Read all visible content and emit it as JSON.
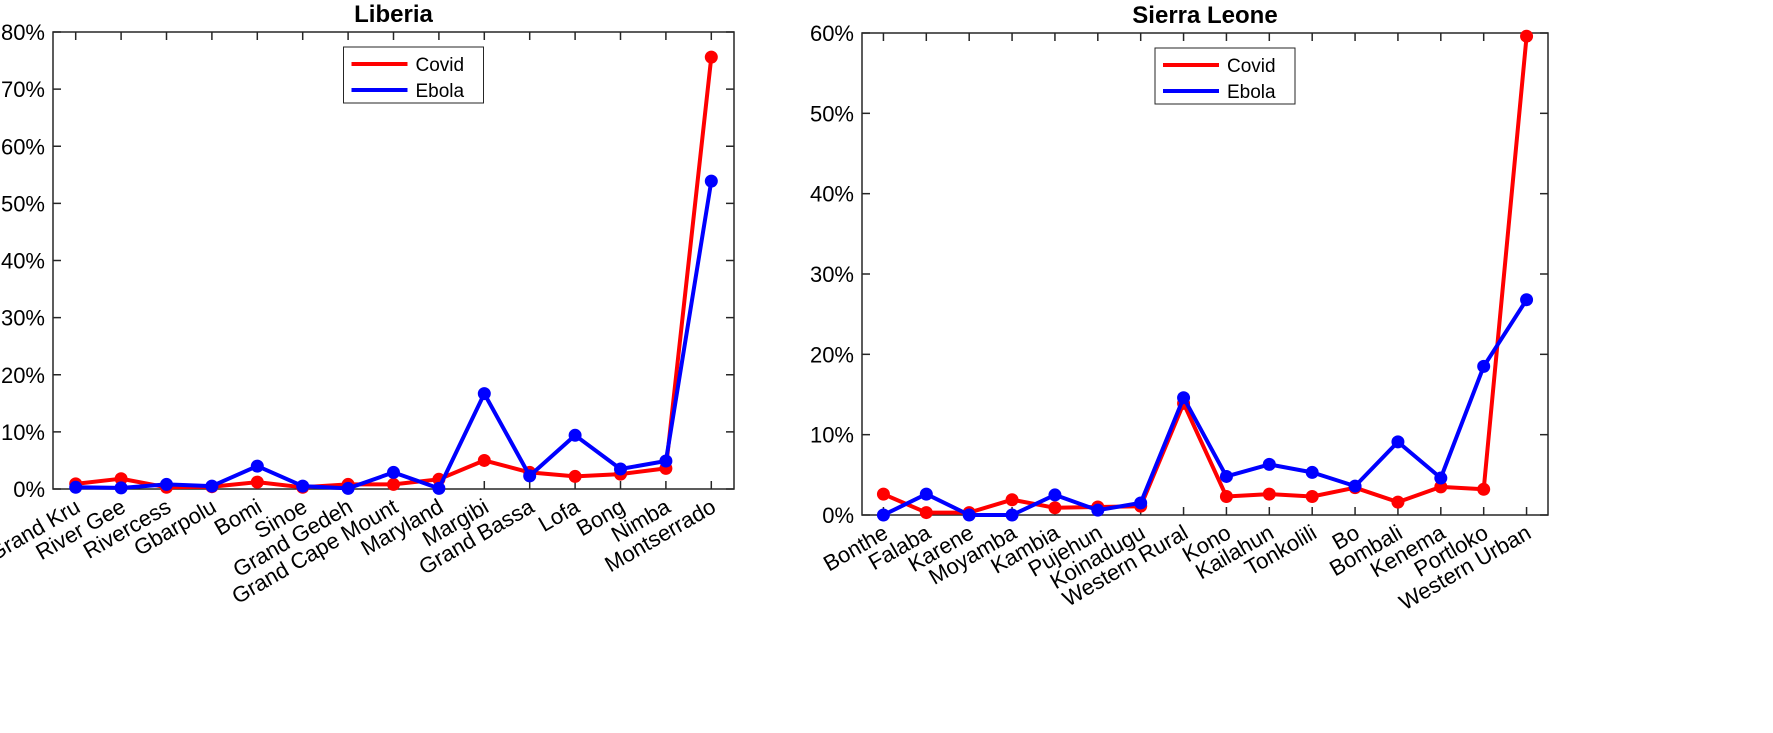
{
  "chart_data": [
    {
      "type": "line",
      "title": "Liberia",
      "xlabel": "",
      "ylabel": "",
      "categories": [
        "Grand Kru",
        "River Gee",
        "Rivercess",
        "Gbarpolu",
        "Bomi",
        "Sinoe",
        "Grand Gedeh",
        "Grand Cape Mount",
        "Maryland",
        "Margibi",
        "Grand Bassa",
        "Lofa",
        "Bong",
        "Nimba",
        "Montserrado"
      ],
      "y_tick_labels": [
        "0%",
        "10%",
        "20%",
        "30%",
        "40%",
        "50%",
        "60%",
        "70%",
        "80%"
      ],
      "ylim": [
        0,
        80
      ],
      "grid": false,
      "legend_position": "top-center",
      "series": [
        {
          "name": "Covid",
          "color": "#ff0000",
          "values": [
            0.9,
            1.8,
            0.3,
            0.4,
            1.2,
            0.3,
            0.8,
            0.8,
            1.7,
            5.0,
            2.9,
            2.2,
            2.6,
            3.6,
            75.6
          ]
        },
        {
          "name": "Ebola",
          "color": "#0000ff",
          "values": [
            0.3,
            0.2,
            0.8,
            0.5,
            4.0,
            0.5,
            0.1,
            2.9,
            0.1,
            16.7,
            2.3,
            9.4,
            3.5,
            4.9,
            53.9
          ]
        }
      ]
    },
    {
      "type": "line",
      "title": "Sierra Leone",
      "xlabel": "",
      "ylabel": "",
      "categories": [
        "Bonthe",
        "Falaba",
        "Karene",
        "Moyamba",
        "Kambia",
        "Pujehun",
        "Koinadugu",
        "Western Rural",
        "Kono",
        "Kailahun",
        "Tonkolili",
        "Bo",
        "Bombali",
        "Kenema",
        "Portloko",
        "Western Urban"
      ],
      "y_tick_labels": [
        "0%",
        "10%",
        "20%",
        "30%",
        "40%",
        "50%",
        "60%"
      ],
      "ylim": [
        0,
        60
      ],
      "grid": false,
      "legend_position": "top-center",
      "series": [
        {
          "name": "Covid",
          "color": "#ff0000",
          "values": [
            2.6,
            0.3,
            0.3,
            1.9,
            0.9,
            1.0,
            1.1,
            13.9,
            2.3,
            2.6,
            2.3,
            3.4,
            1.6,
            3.5,
            3.2,
            59.6
          ]
        },
        {
          "name": "Ebola",
          "color": "#0000ff",
          "values": [
            0.0,
            2.6,
            0.0,
            0.0,
            2.5,
            0.6,
            1.5,
            14.6,
            4.8,
            6.3,
            5.3,
            3.6,
            9.1,
            4.6,
            18.5,
            26.8
          ]
        }
      ]
    }
  ]
}
